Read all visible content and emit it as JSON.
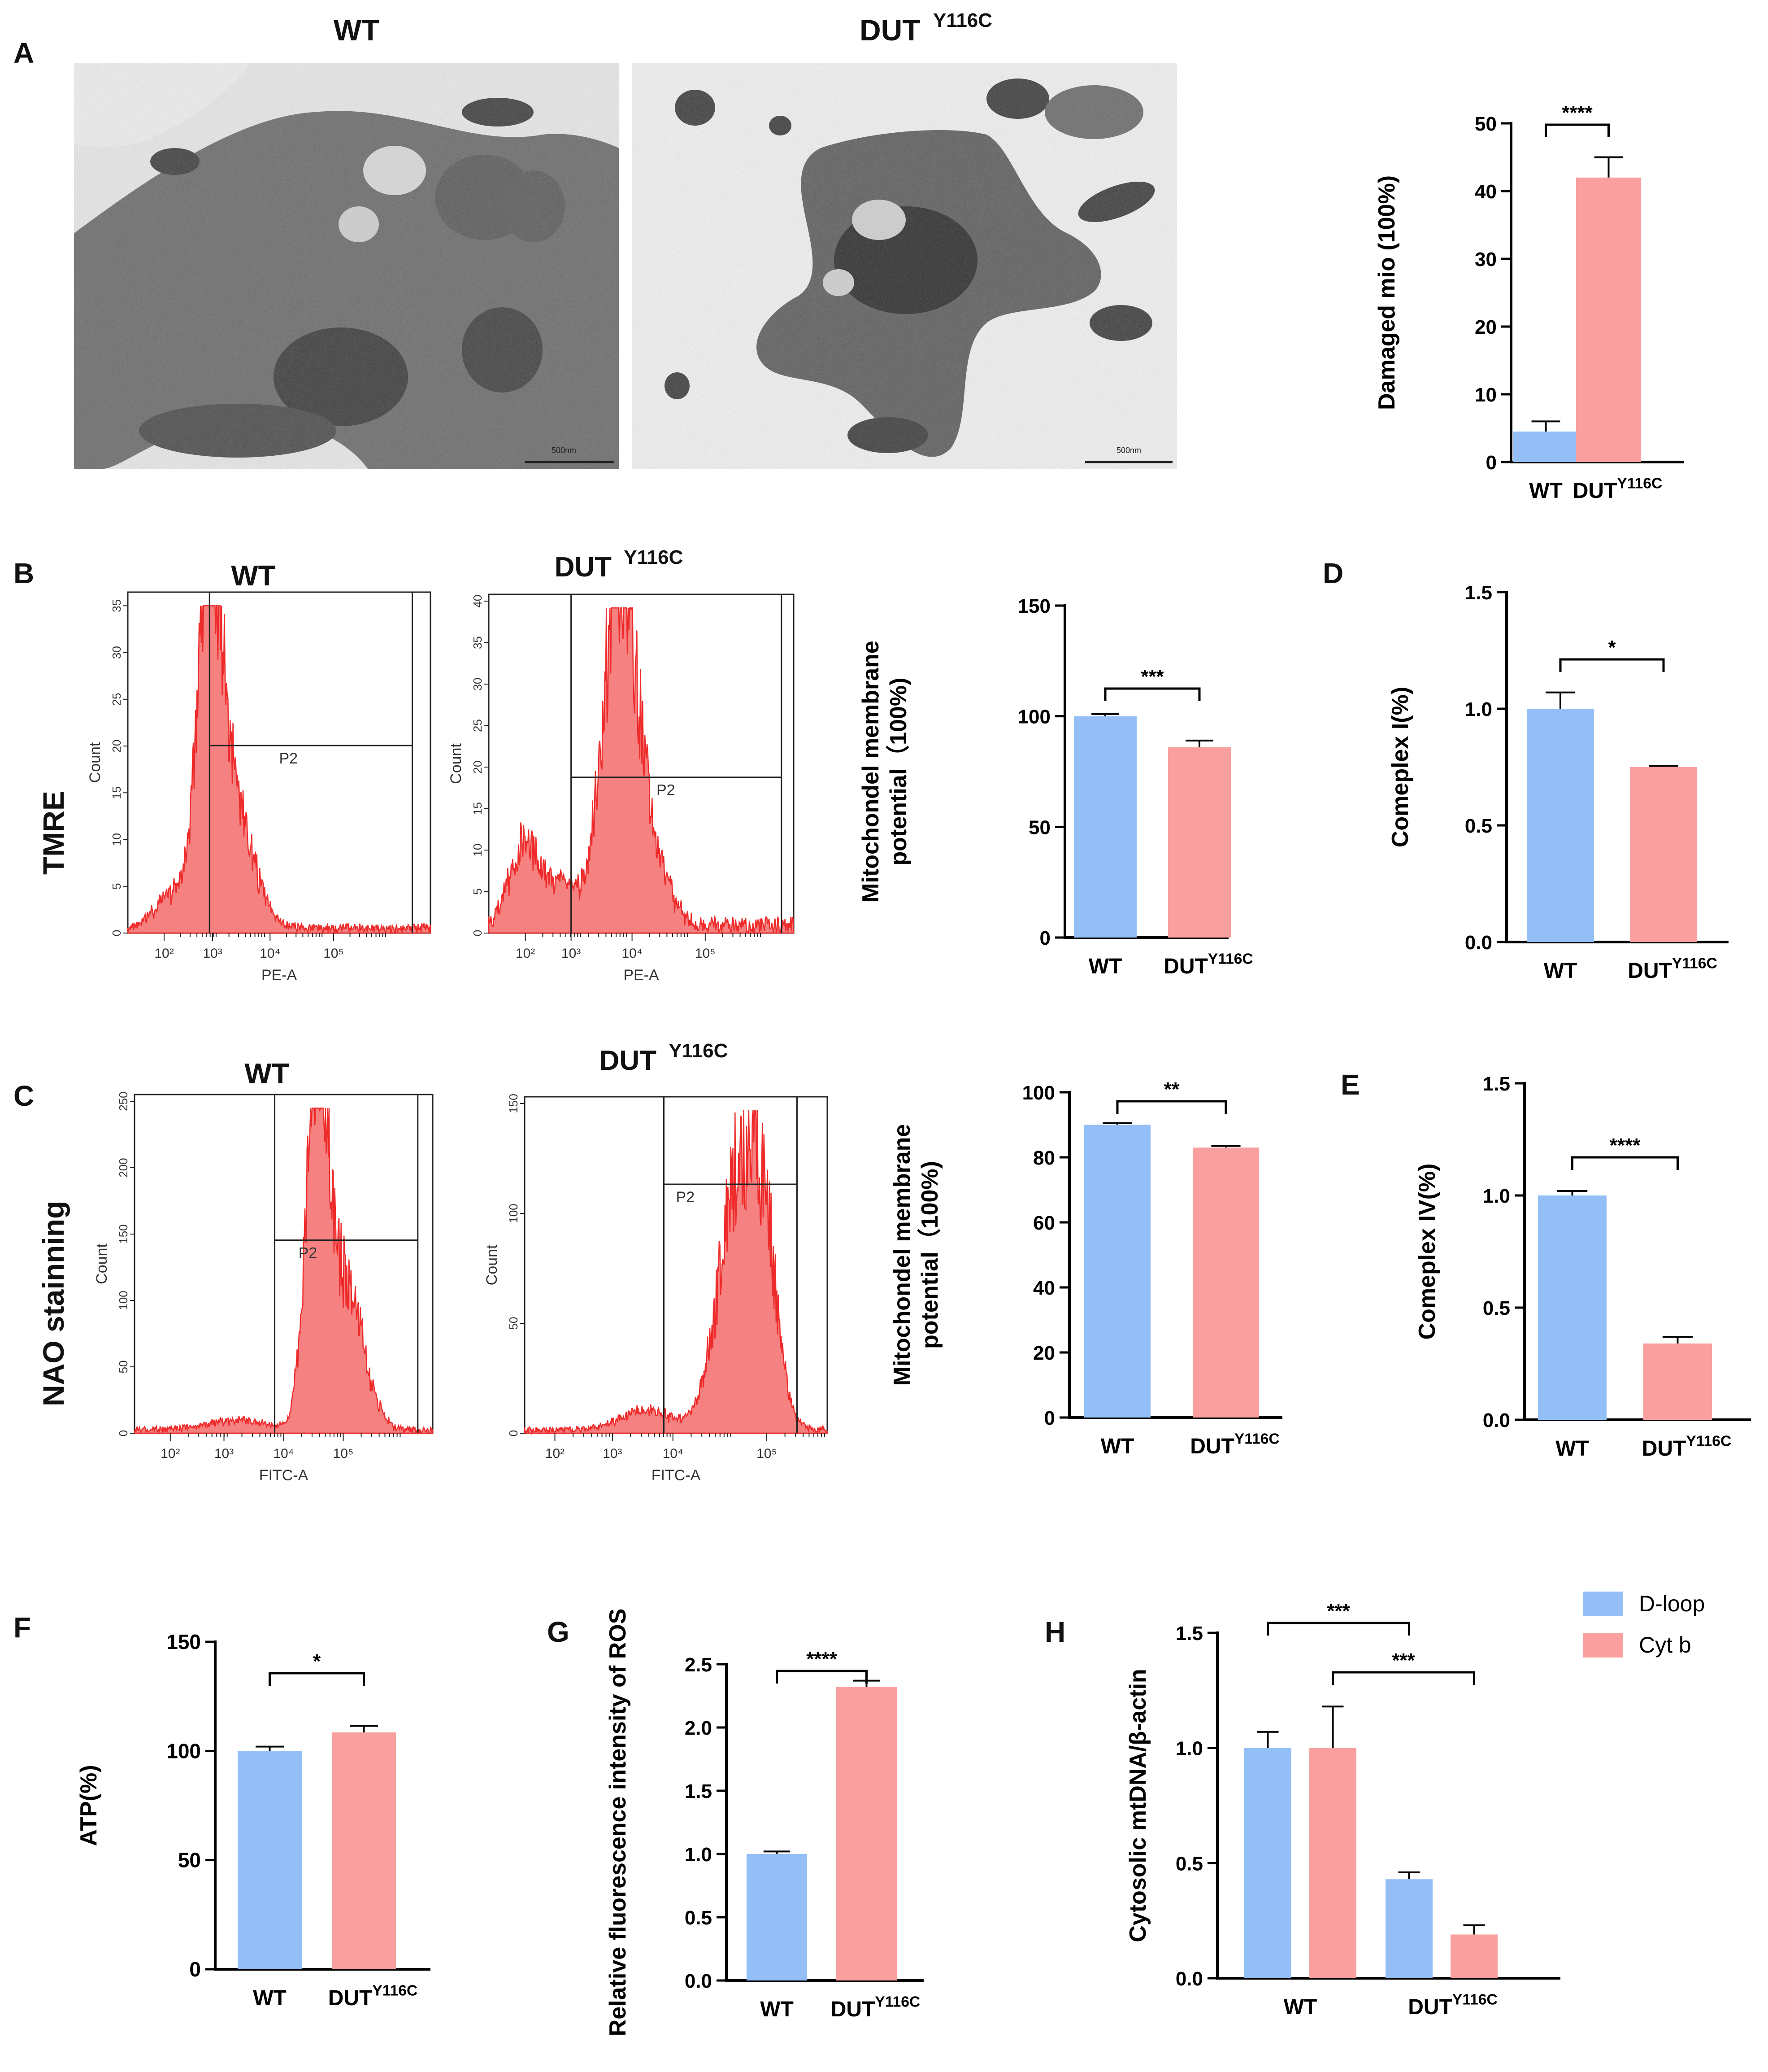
{
  "panel_labels": {
    "a": "A",
    "b": "B",
    "c": "C",
    "d": "D",
    "e": "E",
    "f": "F",
    "g": "G",
    "h": "H"
  },
  "row_labels": {
    "tmre": "TMRE",
    "nao": "NAO stainning"
  },
  "group": {
    "wt": "WT",
    "mut_base": "DUT",
    "mut_sup": "Y116C"
  },
  "scale_bar": "500nm",
  "colors": {
    "wt": "#93bff6",
    "mut": "#f9a09e",
    "hist": "#ee2b2b",
    "axis": "#000000",
    "tem_bg": "#6e6e6e"
  },
  "flow": {
    "b_wt": {
      "ylabel": "Count",
      "xlabel": "PE-A",
      "gate": "P2",
      "yticks": [
        "0",
        "5",
        "10",
        "15",
        "20",
        "25",
        "30",
        "35"
      ],
      "xticks": [
        "10²",
        "10³",
        "10⁴",
        "10⁵"
      ]
    },
    "b_mut": {
      "ylabel": "Count",
      "xlabel": "PE-A",
      "gate": "P2",
      "yticks": [
        "0",
        "5",
        "10",
        "15",
        "20",
        "25",
        "30",
        "35",
        "40"
      ],
      "xticks": [
        "10²",
        "10³",
        "10⁴",
        "10⁵"
      ]
    },
    "c_wt": {
      "ylabel": "Count",
      "xlabel": "FITC-A",
      "gate": "P2",
      "yticks": [
        "0",
        "50",
        "100",
        "150",
        "200",
        "250"
      ],
      "xticks": [
        "10²",
        "10³",
        "10⁴",
        "10⁵"
      ]
    },
    "c_mut": {
      "ylabel": "Count",
      "xlabel": "FITC-A",
      "gate": "P2",
      "yticks": [
        "0",
        "50",
        "100",
        "150"
      ],
      "xticks": [
        "10²",
        "10³",
        "10⁴",
        "10⁵"
      ]
    }
  },
  "chart_data": [
    {
      "id": "A",
      "type": "bar",
      "ylabel": "Damaged mio (100%)",
      "ylim": [
        0,
        50
      ],
      "yticks": [
        "0",
        "10",
        "20",
        "30",
        "40",
        "50"
      ],
      "categories": [
        "WT",
        "DUT Y116C"
      ],
      "values": [
        4.5,
        42
      ],
      "errors": [
        1.5,
        3
      ],
      "significance": "****"
    },
    {
      "id": "B",
      "type": "bar",
      "ylabel": "Mitochondel membrane potential（100%)",
      "ylabel_lines": [
        "Mitochondel membrane",
        "potential（100%)"
      ],
      "ylim": [
        0,
        150
      ],
      "yticks": [
        "0",
        "50",
        "100",
        "150"
      ],
      "categories": [
        "WT",
        "DUT Y116C"
      ],
      "values": [
        100,
        86
      ],
      "errors": [
        1,
        3
      ],
      "significance": "***"
    },
    {
      "id": "C",
      "type": "bar",
      "ylabel": "Mitochondel membrane potential（100%)",
      "ylabel_lines": [
        "Mitochondel membrane",
        "potential（100%)"
      ],
      "ylim": [
        0,
        100
      ],
      "yticks": [
        "0",
        "20",
        "40",
        "60",
        "80",
        "100"
      ],
      "categories": [
        "WT",
        "DUT Y116C"
      ],
      "values": [
        90,
        83
      ],
      "errors": [
        0.5,
        0.5
      ],
      "significance": "**"
    },
    {
      "id": "D",
      "type": "bar",
      "ylabel": "Comeplex I(%)",
      "ylim": [
        0,
        1.5
      ],
      "yticks": [
        "0.0",
        "0.5",
        "1.0",
        "1.5"
      ],
      "categories": [
        "WT",
        "DUT Y116C"
      ],
      "values": [
        1.0,
        0.75
      ],
      "errors": [
        0.07,
        0.005
      ],
      "significance": "*"
    },
    {
      "id": "E",
      "type": "bar",
      "ylabel": "Comeplex IV(%)",
      "ylim": [
        0,
        1.5
      ],
      "yticks": [
        "0.0",
        "0.5",
        "1.0",
        "1.5"
      ],
      "categories": [
        "WT",
        "DUT Y116C"
      ],
      "values": [
        1.0,
        0.34
      ],
      "errors": [
        0.02,
        0.03
      ],
      "significance": "****"
    },
    {
      "id": "F",
      "type": "bar",
      "ylabel": "ATP(%)",
      "ylim": [
        0,
        150
      ],
      "yticks": [
        "0",
        "50",
        "100",
        "150"
      ],
      "categories": [
        "WT",
        "DUT Y116C"
      ],
      "values": [
        100,
        108.5
      ],
      "errors": [
        2,
        3
      ],
      "significance": "*"
    },
    {
      "id": "G",
      "type": "bar",
      "ylabel": "Relative fluorescence intensity of ROS",
      "ylim": [
        0,
        2.5
      ],
      "yticks": [
        "0.0",
        "0.5",
        "1.0",
        "1.5",
        "2.0",
        "2.5"
      ],
      "categories": [
        "WT",
        "DUT Y116C"
      ],
      "values": [
        1.0,
        2.32
      ],
      "errors": [
        0.02,
        0.05
      ],
      "significance": "****"
    },
    {
      "id": "H",
      "type": "bar",
      "ylabel": "Cytosolic mtDNA/β-actin",
      "ylim": [
        0,
        1.5
      ],
      "yticks": [
        "0.0",
        "0.5",
        "1.0",
        "1.5"
      ],
      "categories": [
        "WT",
        "DUT Y116C"
      ],
      "series": [
        {
          "name": "D-loop",
          "values": [
            1.0,
            0.43
          ],
          "errors": [
            0.07,
            0.03
          ]
        },
        {
          "name": "Cyt b",
          "values": [
            1.0,
            0.19
          ],
          "errors": [
            0.18,
            0.04
          ]
        }
      ],
      "significance": [
        "***",
        "***"
      ]
    }
  ]
}
